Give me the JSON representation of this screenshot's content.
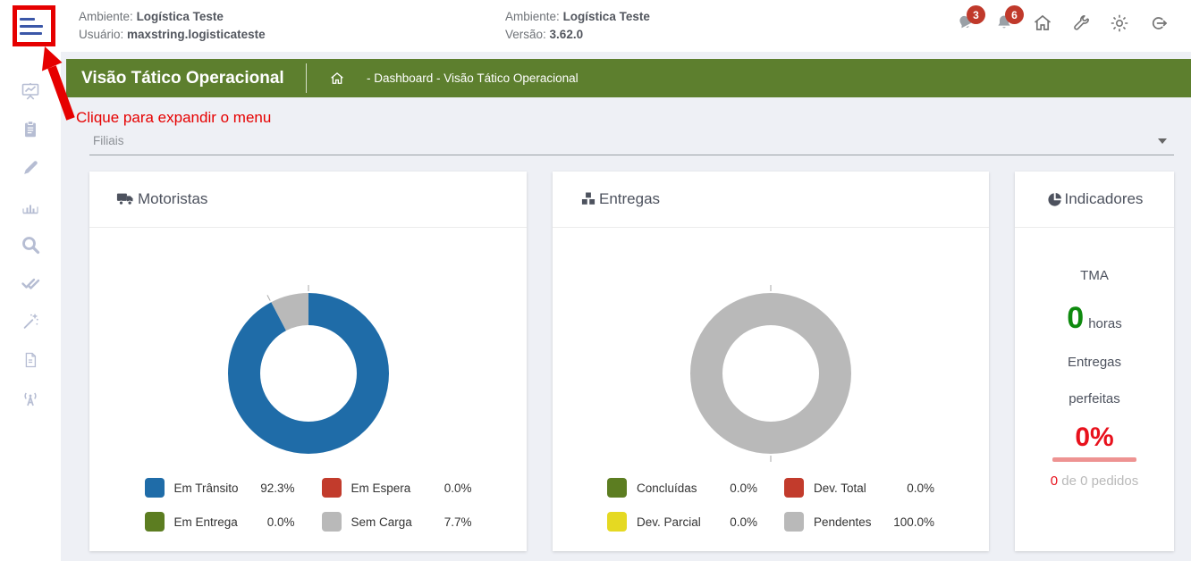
{
  "colors": {
    "green_bar": "#5d7f2e",
    "annotation_red": "#e60000",
    "badge_red": "#c0392b",
    "indicator_green": "#0e8a0e",
    "indicator_red": "#e8111c"
  },
  "header": {
    "left": {
      "ambiente_label": "Ambiente:",
      "ambiente_value": "Logística Teste",
      "usuario_label": "Usuário:",
      "usuario_value": "maxstring.logisticateste"
    },
    "center": {
      "ambiente_label": "Ambiente:",
      "ambiente_value": "Logística Teste",
      "versao_label": "Versão:",
      "versao_value": "3.62.0"
    },
    "notifications": [
      {
        "count": "3"
      },
      {
        "count": "6"
      }
    ]
  },
  "titlebar": {
    "title": "Visão Tático Operacional",
    "breadcrumb": "- Dashboard - Visão Tático Operacional"
  },
  "annotation": {
    "text": "Clique para expandir o menu"
  },
  "filters": {
    "filiais_label": "Filiais"
  },
  "cards": {
    "motoristas": {
      "title": "Motoristas",
      "legend": [
        {
          "label": "Em Trânsito",
          "value": "92.3%",
          "color": "#1f6ca8"
        },
        {
          "label": "Em Espera",
          "value": "0.0%",
          "color": "#c23b2c"
        },
        {
          "label": "Em Entrega",
          "value": "0.0%",
          "color": "#5c7d21"
        },
        {
          "label": "Sem Carga",
          "value": "7.7%",
          "color": "#b9b9b9"
        }
      ]
    },
    "entregas": {
      "title": "Entregas",
      "legend": [
        {
          "label": "Concluídas",
          "value": "0.0%",
          "color": "#5c7d21"
        },
        {
          "label": "Dev. Total",
          "value": "0.0%",
          "color": "#c23b2c"
        },
        {
          "label": "Dev. Parcial",
          "value": "0.0%",
          "color": "#e5d922"
        },
        {
          "label": "Pendentes",
          "value": "100.0%",
          "color": "#b9b9b9"
        }
      ]
    },
    "indicadores": {
      "title": "Indicadores",
      "tma_label": "TMA",
      "tma_value": "0",
      "tma_unit": "horas",
      "perfect_line1": "Entregas",
      "perfect_line2": "perfeitas",
      "perfect_percent": "0%",
      "orders_highlight": "0",
      "orders_rest": " de 0 pedidos"
    }
  },
  "chart_data": [
    {
      "type": "pie",
      "title": "Motoristas",
      "labels": [
        "Em Trânsito",
        "Em Espera",
        "Em Entrega",
        "Sem Carga"
      ],
      "values": [
        92.3,
        0.0,
        0.0,
        7.7
      ],
      "colors": [
        "#1f6ca8",
        "#c23b2c",
        "#5c7d21",
        "#b9b9b9"
      ],
      "donut": true,
      "legend_position": "bottom"
    },
    {
      "type": "pie",
      "title": "Entregas",
      "labels": [
        "Concluídas",
        "Dev. Total",
        "Dev. Parcial",
        "Pendentes"
      ],
      "values": [
        0.0,
        0.0,
        0.0,
        100.0
      ],
      "colors": [
        "#5c7d21",
        "#c23b2c",
        "#e5d922",
        "#b9b9b9"
      ],
      "donut": true,
      "legend_position": "bottom"
    }
  ]
}
